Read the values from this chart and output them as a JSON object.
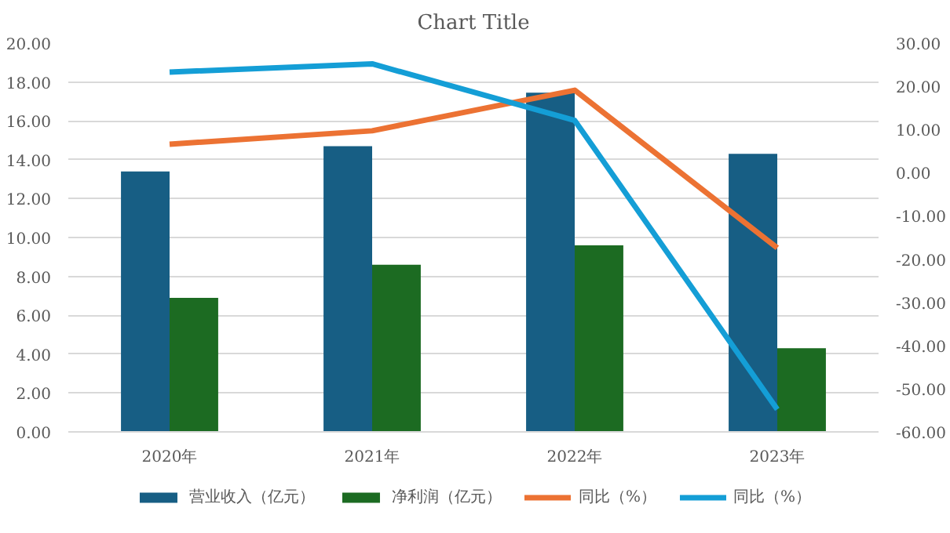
{
  "chart_data": {
    "type": "bar",
    "title": "Chart Title",
    "categories": [
      "2020年",
      "2021年",
      "2022年",
      "2023年"
    ],
    "series": [
      {
        "name": "营业收入（亿元）",
        "color": "#175e84",
        "values": [
          13.4,
          14.7,
          17.45,
          14.3
        ]
      },
      {
        "name": "净利润（亿元）",
        "color": "#1c6b22",
        "values": [
          6.9,
          8.6,
          9.6,
          4.3
        ]
      },
      {
        "name": "同比（%）",
        "type": "line",
        "axis": "y2",
        "color": "#ec7233",
        "values": [
          6.6,
          9.7,
          19.1,
          -17.4
        ]
      },
      {
        "name": "同比（%）",
        "type": "line",
        "axis": "y2",
        "color": "#149ed6",
        "values": [
          23.3,
          25.2,
          12.1,
          -54.8
        ]
      }
    ],
    "ylim": [
      0,
      20
    ],
    "yticks": [
      {
        "value": 0,
        "label": "0.00"
      },
      {
        "value": 2,
        "label": "2.00"
      },
      {
        "value": 4,
        "label": "4.00"
      },
      {
        "value": 6,
        "label": "6.00"
      },
      {
        "value": 8,
        "label": "8.00"
      },
      {
        "value": 10,
        "label": "10.00"
      },
      {
        "value": 12,
        "label": "12.00"
      },
      {
        "value": 14,
        "label": "14.00"
      },
      {
        "value": 16,
        "label": "16.00"
      },
      {
        "value": 18,
        "label": "18.00"
      },
      {
        "value": 20,
        "label": "20.00"
      }
    ],
    "y2lim": [
      -60,
      30
    ],
    "y2ticks": [
      {
        "value": -60,
        "label": "-60.00"
      },
      {
        "value": -50,
        "label": "-50.00"
      },
      {
        "value": -40,
        "label": "-40.00"
      },
      {
        "value": -30,
        "label": "-30.00"
      },
      {
        "value": -20,
        "label": "-20.00"
      },
      {
        "value": -10,
        "label": "-10.00"
      },
      {
        "value": 0,
        "label": "0.00"
      },
      {
        "value": 10,
        "label": "10.00"
      },
      {
        "value": 20,
        "label": "20.00"
      },
      {
        "value": 30,
        "label": "30.00"
      }
    ],
    "grid": "y",
    "legend": "bottom",
    "line_style": "solid"
  }
}
